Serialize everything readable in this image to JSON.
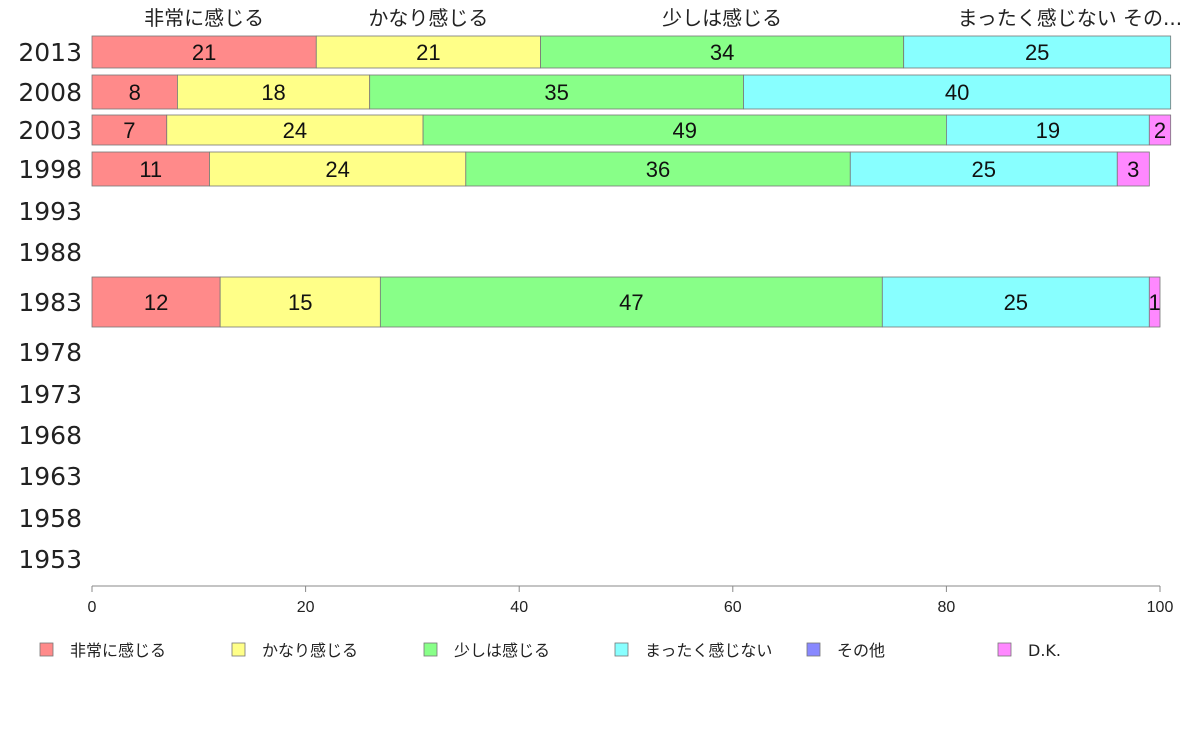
{
  "chart_data": {
    "type": "bar",
    "orientation": "horizontal",
    "stacked": true,
    "categories": [
      "2013",
      "2008",
      "2003",
      "1998",
      "1993",
      "1988",
      "1983",
      "1978",
      "1973",
      "1968",
      "1963",
      "1958",
      "1953"
    ],
    "series": [
      {
        "name": "非常に感じる",
        "color": "#ff8a8a",
        "values": [
          21,
          8,
          7,
          11,
          null,
          null,
          12,
          null,
          null,
          null,
          null,
          null,
          null
        ]
      },
      {
        "name": "かなり感じる",
        "color": "#ffff88",
        "values": [
          21,
          18,
          24,
          24,
          null,
          null,
          15,
          null,
          null,
          null,
          null,
          null,
          null
        ]
      },
      {
        "name": "少しは感じる",
        "color": "#88ff88",
        "values": [
          34,
          35,
          49,
          36,
          null,
          null,
          47,
          null,
          null,
          null,
          null,
          null,
          null
        ]
      },
      {
        "name": "まったく感じない",
        "color": "#88ffff",
        "values": [
          25,
          40,
          19,
          25,
          null,
          null,
          25,
          null,
          null,
          null,
          null,
          null,
          null
        ]
      },
      {
        "name": "その他",
        "color": "#8888ff",
        "values": [
          0,
          0,
          0,
          0,
          null,
          null,
          0,
          null,
          null,
          null,
          null,
          null,
          null
        ]
      },
      {
        "name": "D.K.",
        "color": "#ff88ff",
        "values": [
          0,
          0,
          2,
          3,
          null,
          null,
          1,
          null,
          null,
          null,
          null,
          null,
          null
        ]
      }
    ],
    "top_labels": [
      "非常に感じる",
      "かなり感じる",
      "少しは感じる",
      "まったく感じない",
      "その..."
    ],
    "xlim": [
      0,
      100
    ],
    "xticks": [
      0,
      20,
      40,
      60,
      80,
      100
    ],
    "legend_position": "bottom",
    "grid": false
  }
}
